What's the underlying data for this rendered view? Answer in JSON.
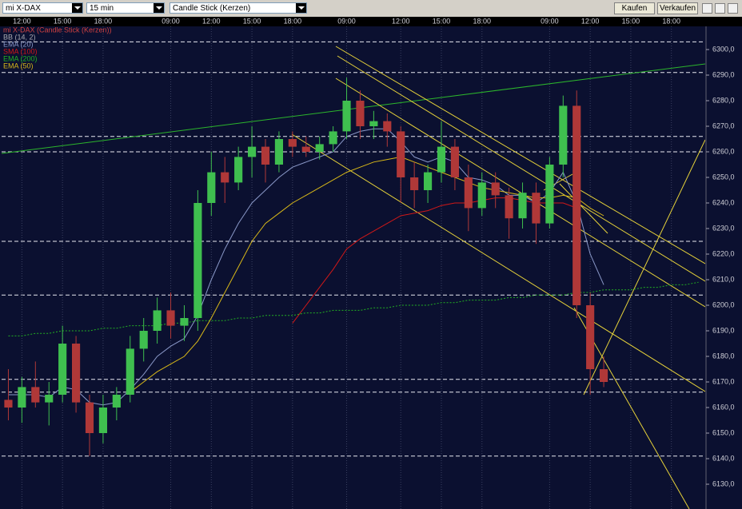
{
  "toolbar": {
    "instrument": "mi X-DAX",
    "interval": "15 min",
    "chart_style": "Candle Stick (Kerzen)",
    "buy": "Kaufen",
    "sell": "Verkaufen"
  },
  "chart_data": {
    "type": "candlestick",
    "categories": [
      null,
      "12:00",
      null,
      null,
      "15:00",
      null,
      null,
      "18:00",
      null,
      null,
      null,
      null,
      "09:00",
      null,
      null,
      "12:00",
      null,
      null,
      "15:00",
      null,
      null,
      "18:00",
      null,
      null,
      null,
      "09:00",
      null,
      null,
      null,
      "12:00",
      null,
      null,
      "15:00",
      null,
      null,
      "18:00",
      null,
      null,
      null,
      null,
      "09:00",
      null,
      null,
      "12:00",
      null,
      null,
      "15:00",
      null,
      null,
      "18:00",
      null,
      null
    ],
    "ylim": [
      6121,
      6310
    ],
    "yticks": [
      {
        "value": 6130,
        "label": "6130,0"
      },
      {
        "value": 6140,
        "label": "6140,0"
      },
      {
        "value": 6150,
        "label": "6150,0"
      },
      {
        "value": 6160,
        "label": "6160,0"
      },
      {
        "value": 6170,
        "label": "6170,0"
      },
      {
        "value": 6180,
        "label": "6180,0"
      },
      {
        "value": 6190,
        "label": "6190,0"
      },
      {
        "value": 6200,
        "label": "6200,0"
      },
      {
        "value": 6210,
        "label": "6210,0"
      },
      {
        "value": 6220,
        "label": "6220,0"
      },
      {
        "value": 6230,
        "label": "6230,0"
      },
      {
        "value": 6240,
        "label": "6240,0"
      },
      {
        "value": 6250,
        "label": "6250,0"
      },
      {
        "value": 6260,
        "label": "6260,0"
      },
      {
        "value": 6270,
        "label": "6270,0"
      },
      {
        "value": 6280,
        "label": "6280,0"
      },
      {
        "value": 6290,
        "label": "6290,0"
      },
      {
        "value": 6300,
        "label": "6300,0"
      }
    ],
    "levels": [
      6303,
      6291,
      6266,
      6260,
      6225,
      6204,
      6171,
      6166,
      6141
    ],
    "series": [
      {
        "name": "mi X-DAX (Candle Stick (Kerzen))",
        "color": "#d04040",
        "up_color": "#3fbf4f",
        "down_color": "#b03838",
        "open": [
          6163,
          6160,
          6168,
          6162,
          6165,
          6185,
          6162,
          6150,
          6160,
          6165,
          6183,
          6190,
          6198,
          6192,
          6195,
          6240,
          6252,
          6248,
          6258,
          6262,
          6255,
          6265,
          6262,
          6260,
          6263,
          6268,
          6280,
          6270,
          6272,
          6268,
          6250,
          6245,
          6252,
          6262,
          6250,
          6238,
          6248,
          6243,
          6234,
          6244,
          6232,
          6255,
          6278,
          6200,
          6175,
          null,
          null,
          null,
          null,
          null,
          null,
          null
        ],
        "high": [
          6175,
          6172,
          6178,
          6170,
          6192,
          6188,
          6165,
          6165,
          6168,
          6188,
          6195,
          6203,
          6205,
          6200,
          6245,
          6260,
          6258,
          6262,
          6270,
          6265,
          6268,
          6268,
          6266,
          6266,
          6270,
          6289,
          6284,
          6276,
          6275,
          6270,
          6256,
          6255,
          6272,
          6265,
          6255,
          6252,
          6252,
          6246,
          6248,
          6248,
          6258,
          6282,
          6284,
          6205,
          6180,
          null,
          null,
          null,
          null,
          null,
          null,
          null
        ],
        "low": [
          6155,
          6154,
          6160,
          6153,
          6162,
          6158,
          6141,
          6146,
          6155,
          6162,
          6178,
          6185,
          6187,
          6186,
          6190,
          6235,
          6240,
          6245,
          6250,
          6248,
          6252,
          6258,
          6258,
          6257,
          6260,
          6265,
          6265,
          6265,
          6262,
          6240,
          6238,
          6240,
          6248,
          6245,
          6229,
          6235,
          6238,
          6226,
          6230,
          6224,
          6230,
          6250,
          6195,
          6165,
          6168,
          null,
          null,
          null,
          null,
          null,
          null,
          null
        ],
        "close": [
          6160,
          6168,
          6162,
          6165,
          6185,
          6162,
          6150,
          6160,
          6165,
          6183,
          6190,
          6198,
          6192,
          6195,
          6240,
          6252,
          6248,
          6258,
          6262,
          6255,
          6265,
          6262,
          6260,
          6263,
          6268,
          6280,
          6270,
          6272,
          6268,
          6250,
          6245,
          6252,
          6262,
          6250,
          6238,
          6248,
          6243,
          6234,
          6244,
          6232,
          6255,
          6278,
          6200,
          6175,
          6170,
          null,
          null,
          null,
          null,
          null,
          null,
          null
        ]
      },
      {
        "name": "BB (14, 2)",
        "color": "#a8a8b0"
      },
      {
        "name": "EMA (20)",
        "color": "#8a98c8",
        "values": [
          6165,
          6165,
          6165,
          6164,
          6168,
          6167,
          6162,
          6161,
          6162,
          6167,
          6173,
          6180,
          6184,
          6187,
          6196,
          6210,
          6222,
          6232,
          6240,
          6245,
          6250,
          6254,
          6256,
          6258,
          6260,
          6266,
          6268,
          6269,
          6269,
          6264,
          6258,
          6256,
          6258,
          6256,
          6250,
          6249,
          6247,
          6243,
          6243,
          6240,
          6244,
          6252,
          6240,
          6220,
          6208,
          null,
          null,
          null,
          null,
          null,
          null,
          null
        ]
      },
      {
        "name": "SMA (100)",
        "color": "#d01818",
        "values": [
          null,
          null,
          null,
          null,
          null,
          null,
          null,
          null,
          null,
          null,
          null,
          null,
          null,
          null,
          null,
          null,
          null,
          null,
          null,
          null,
          null,
          6193,
          6200,
          6207,
          6214,
          6222,
          6226,
          6229,
          6232,
          6235,
          6236,
          6237,
          6239,
          6240,
          6240,
          6241,
          6242,
          6242,
          6241,
          6240,
          6240,
          6240,
          6238,
          null,
          null,
          null,
          null,
          null,
          null,
          null,
          null,
          null
        ]
      },
      {
        "name": "EMA (200)",
        "color": "#22b022",
        "values": [
          6188,
          6188,
          6189,
          6189,
          6190,
          6190,
          6190,
          6191,
          6191,
          6192,
          6192,
          6192,
          6193,
          6193,
          6194,
          6194,
          6194,
          6195,
          6195,
          6196,
          6196,
          6196,
          6197,
          6197,
          6198,
          6198,
          6198,
          6199,
          6199,
          6200,
          6200,
          6200,
          6201,
          6201,
          6202,
          6202,
          6202,
          6203,
          6203,
          6204,
          6204,
          6204,
          6205,
          6205,
          6206,
          6206,
          6206,
          6207,
          6207,
          6208,
          6208,
          6209
        ]
      },
      {
        "name": "EMA (50)",
        "color": "#d8b818",
        "values": [
          null,
          null,
          null,
          null,
          null,
          null,
          null,
          null,
          null,
          6166,
          6170,
          6174,
          6177,
          6180,
          6186,
          6195,
          6205,
          6215,
          6225,
          6232,
          6236,
          6240,
          6243,
          6246,
          6249,
          6252,
          6254,
          6256,
          6257,
          6258,
          6256,
          6254,
          6252,
          6250,
          6248,
          6246,
          6245,
          6244,
          6243,
          6242,
          6242,
          6243,
          6242,
          6238,
          6235,
          null,
          null,
          null,
          null,
          null,
          null,
          null
        ]
      }
    ]
  }
}
